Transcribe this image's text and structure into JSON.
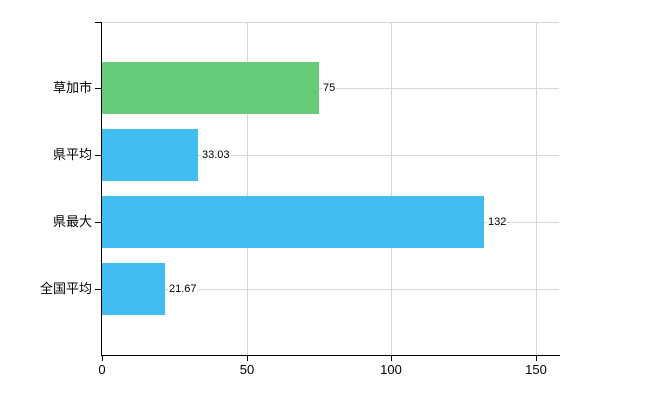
{
  "chart_data": {
    "type": "bar",
    "orientation": "horizontal",
    "title": "",
    "xlabel": "",
    "ylabel": "",
    "categories": [
      "草加市",
      "県平均",
      "県最大",
      "全国平均"
    ],
    "values": [
      75,
      33.03,
      132,
      21.67
    ],
    "value_labels": [
      "75",
      "33.03",
      "132",
      "21.67"
    ],
    "series": [
      {
        "name": "values",
        "values": [
          75,
          33.03,
          132,
          21.67
        ]
      }
    ],
    "bar_colors": [
      "#66cc7a",
      "#41bdf0",
      "#41bdf0",
      "#41bdf0"
    ],
    "xlim": [
      0,
      158
    ],
    "x_ticks": [
      0,
      50,
      100,
      150
    ],
    "x_tick_labels": [
      "0",
      "50",
      "100",
      "150"
    ],
    "grid": true,
    "legend": false,
    "colors": {
      "green_bar": "#66cc7a",
      "blue_bar": "#41bdf0",
      "gridline": "#d6d6d6",
      "axis": "#000000",
      "text": "#000000",
      "background": "#ffffff"
    }
  }
}
